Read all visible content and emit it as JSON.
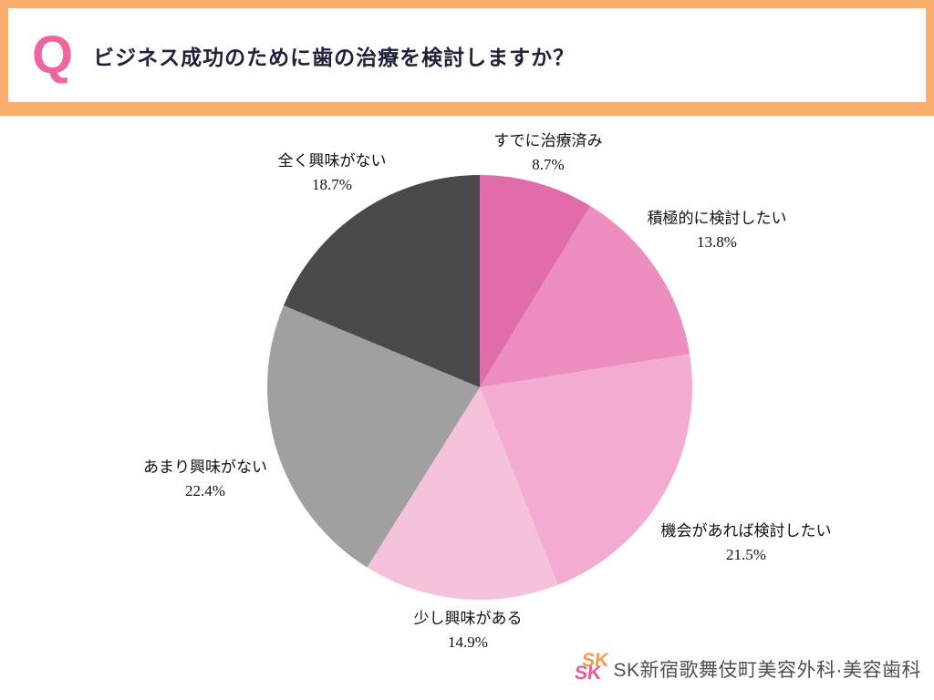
{
  "banner": {
    "q_label": "Q",
    "question": "ビジネス成功のために歯の治療を検討しますか？"
  },
  "chart_data": {
    "type": "pie",
    "title": "ビジネス成功のために歯の治療を検討しますか？",
    "start_angle_deg": -90,
    "direction": "clockwise",
    "slices": [
      {
        "label": "すでに治療済み",
        "value": 8.7,
        "percent_label": "8.7%",
        "color": "#e06daa"
      },
      {
        "label": "積極的に検討したい",
        "value": 13.8,
        "percent_label": "13.8%",
        "color": "#ee8dc0"
      },
      {
        "label": "機会があれば検討したい",
        "value": 21.5,
        "percent_label": "21.5%",
        "color": "#f3abd2"
      },
      {
        "label": "少し興味がある",
        "value": 14.9,
        "percent_label": "14.9%",
        "color": "#f6c1da"
      },
      {
        "label": "あまり興味がない",
        "value": 22.4,
        "percent_label": "22.4%",
        "color": "#a0a0a0"
      },
      {
        "label": "全く興味がない",
        "value": 18.7,
        "percent_label": "18.7%",
        "color": "#4a4a4a"
      }
    ]
  },
  "footer": {
    "logo_mark": "SK",
    "clinic_name": "SK新宿歌舞伎町美容外科·美容歯科"
  }
}
